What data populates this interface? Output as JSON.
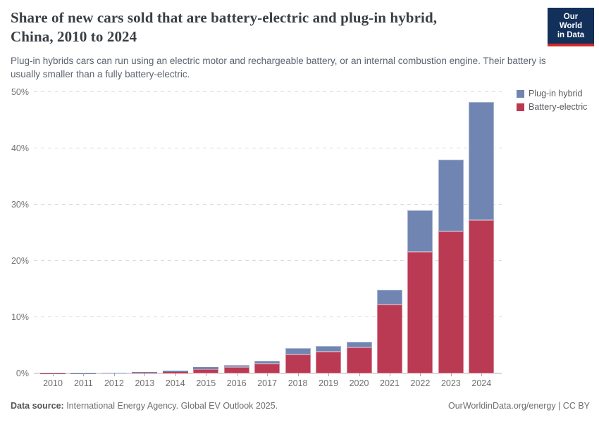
{
  "header": {
    "title_line1": "Share of new cars sold that are battery-electric and plug-in hybrid,",
    "title_line2": "China, 2010 to 2024",
    "subtitle": "Plug-in hybrids cars can run using an electric motor and rechargeable battery, or an internal combustion engine. Their battery is usually smaller than a fully battery-electric.",
    "logo": {
      "line1": "Our World",
      "line2": "in Data",
      "bg_color": "#12305a",
      "accent_color": "#cf2a27"
    }
  },
  "chart_data": {
    "type": "bar",
    "stacked": true,
    "title": "Share of new cars sold that are battery-electric and plug-in hybrid, China, 2010 to 2024",
    "categories": [
      "2010",
      "2011",
      "2012",
      "2013",
      "2014",
      "2015",
      "2016",
      "2017",
      "2018",
      "2019",
      "2020",
      "2021",
      "2022",
      "2023",
      "2024"
    ],
    "series": [
      {
        "name": "Battery-electric",
        "color": "#bb3a53",
        "values": [
          0.01,
          0.05,
          0.1,
          0.15,
          0.3,
          0.8,
          1.1,
          1.7,
          3.4,
          3.9,
          4.6,
          12.3,
          21.6,
          25.2,
          27.2
        ]
      },
      {
        "name": "Plug-in hybrid",
        "color": "#7185b2",
        "values": [
          0.0,
          0.01,
          0.05,
          0.05,
          0.15,
          0.3,
          0.4,
          0.5,
          1.1,
          1.0,
          1.0,
          2.6,
          7.4,
          12.8,
          21.0
        ]
      }
    ],
    "xlabel": "",
    "ylabel": "",
    "yticks": [
      0,
      10,
      20,
      30,
      40,
      50
    ],
    "ytick_suffix": "%",
    "ylim": [
      0,
      50
    ],
    "grid": "dashed-horizontal",
    "legend_position": "top-right"
  },
  "footer": {
    "source_label": "Data source:",
    "source_text": " International Energy Agency. Global EV Outlook 2025.",
    "right_text": "OurWorldinData.org/energy | CC BY"
  }
}
